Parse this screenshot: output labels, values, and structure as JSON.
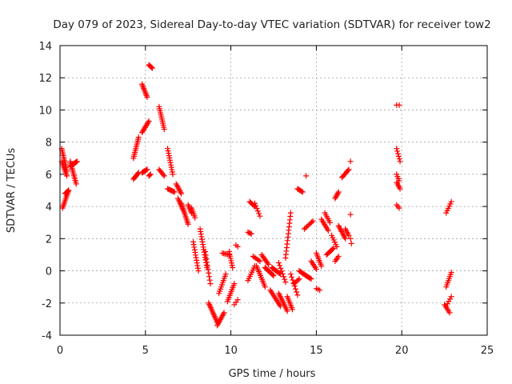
{
  "chart_data": {
    "type": "scatter",
    "title": "Day 079 of 2023, Sidereal Day-to-day VTEC variation (SDTVAR) for receiver tow2",
    "xlabel": "GPS time / hours",
    "ylabel": "SDTVAR / TECUs",
    "xlim": [
      0,
      25
    ],
    "ylim": [
      -4,
      14
    ],
    "xticks": [
      0,
      5,
      10,
      15,
      20,
      25
    ],
    "yticks": [
      -4,
      -2,
      0,
      2,
      4,
      6,
      8,
      10,
      12,
      14
    ],
    "xtick_labels": [
      "0",
      "5",
      "10",
      "15",
      "20",
      "25"
    ],
    "ytick_labels": [
      "-4",
      "-2",
      "0",
      "2",
      "4",
      "6",
      "8",
      "10",
      "12",
      "14"
    ],
    "grid": true,
    "marker": "+",
    "color": "#ff0000",
    "series": [
      {
        "name": "SDTVAR",
        "segments": [
          {
            "x0": 0.1,
            "y0": 7.6,
            "x1": 0.4,
            "y1": 6.2,
            "n": 14
          },
          {
            "x0": 0.1,
            "y0": 6.8,
            "x1": 0.4,
            "y1": 5.9,
            "n": 10
          },
          {
            "x0": 0.15,
            "y0": 3.9,
            "x1": 0.5,
            "y1": 5.0,
            "n": 12
          },
          {
            "x0": 0.3,
            "y0": 4.8,
            "x1": 0.5,
            "y1": 5.0,
            "n": 6
          },
          {
            "x0": 0.6,
            "y0": 6.8,
            "x1": 0.95,
            "y1": 5.4,
            "n": 14
          },
          {
            "x0": 0.6,
            "y0": 6.5,
            "x1": 1.0,
            "y1": 6.8,
            "n": 10
          },
          {
            "x0": 4.3,
            "y0": 5.7,
            "x1": 4.6,
            "y1": 6.1,
            "n": 8
          },
          {
            "x0": 4.3,
            "y0": 7.0,
            "x1": 4.6,
            "y1": 8.3,
            "n": 12
          },
          {
            "x0": 4.8,
            "y0": 11.6,
            "x1": 5.1,
            "y1": 10.8,
            "n": 10
          },
          {
            "x0": 4.8,
            "y0": 8.6,
            "x1": 5.2,
            "y1": 9.3,
            "n": 10
          },
          {
            "x0": 4.8,
            "y0": 6.1,
            "x1": 5.1,
            "y1": 6.3,
            "n": 8
          },
          {
            "x0": 5.2,
            "y0": 12.8,
            "x1": 5.4,
            "y1": 12.6,
            "n": 5
          },
          {
            "x0": 5.2,
            "y0": 5.9,
            "x1": 5.3,
            "y1": 6.0,
            "n": 3
          },
          {
            "x0": 5.8,
            "y0": 10.2,
            "x1": 6.1,
            "y1": 8.8,
            "n": 12
          },
          {
            "x0": 5.8,
            "y0": 6.3,
            "x1": 6.1,
            "y1": 5.9,
            "n": 6
          },
          {
            "x0": 6.3,
            "y0": 7.6,
            "x1": 6.6,
            "y1": 6.0,
            "n": 12
          },
          {
            "x0": 6.3,
            "y0": 5.1,
            "x1": 6.7,
            "y1": 4.9,
            "n": 8
          },
          {
            "x0": 6.8,
            "y0": 5.4,
            "x1": 7.1,
            "y1": 4.8,
            "n": 8
          },
          {
            "x0": 6.9,
            "y0": 4.5,
            "x1": 7.2,
            "y1": 3.8,
            "n": 8
          },
          {
            "x0": 7.1,
            "y0": 4.2,
            "x1": 7.5,
            "y1": 2.9,
            "n": 14
          },
          {
            "x0": 7.5,
            "y0": 4.1,
            "x1": 7.7,
            "y1": 3.6,
            "n": 6
          },
          {
            "x0": 7.7,
            "y0": 3.9,
            "x1": 7.9,
            "y1": 3.3,
            "n": 6
          },
          {
            "x0": 7.8,
            "y0": 1.8,
            "x1": 8.1,
            "y1": 0.0,
            "n": 12
          },
          {
            "x0": 8.2,
            "y0": 2.6,
            "x1": 8.6,
            "y1": 0.2,
            "n": 16
          },
          {
            "x0": 8.5,
            "y0": 1.2,
            "x1": 8.8,
            "y1": -0.8,
            "n": 10
          },
          {
            "x0": 8.7,
            "y0": -2.0,
            "x1": 9.2,
            "y1": -3.2,
            "n": 14
          },
          {
            "x0": 9.2,
            "y0": -3.4,
            "x1": 9.6,
            "y1": -2.6,
            "n": 10
          },
          {
            "x0": 9.3,
            "y0": -1.4,
            "x1": 9.7,
            "y1": -0.2,
            "n": 10
          },
          {
            "x0": 9.5,
            "y0": 1.1,
            "x1": 9.9,
            "y1": 1.0,
            "n": 6
          },
          {
            "x0": 9.8,
            "y0": -1.9,
            "x1": 10.2,
            "y1": -0.8,
            "n": 10
          },
          {
            "x0": 9.9,
            "y0": 1.2,
            "x1": 10.1,
            "y1": 0.2,
            "n": 8
          },
          {
            "x0": 10.3,
            "y0": 1.6,
            "x1": 10.4,
            "y1": 1.5,
            "n": 2
          },
          {
            "x0": 10.2,
            "y0": -2.1,
            "x1": 10.4,
            "y1": -1.8,
            "n": 3
          },
          {
            "x0": 11.0,
            "y0": 2.4,
            "x1": 11.2,
            "y1": 2.3,
            "n": 4
          },
          {
            "x0": 11.1,
            "y0": 4.3,
            "x1": 11.4,
            "y1": 4.0,
            "n": 6
          },
          {
            "x0": 11.4,
            "y0": 4.2,
            "x1": 11.7,
            "y1": 3.4,
            "n": 6
          },
          {
            "x0": 11.0,
            "y0": -0.6,
            "x1": 11.4,
            "y1": 0.3,
            "n": 8
          },
          {
            "x0": 11.3,
            "y0": 0.9,
            "x1": 11.7,
            "y1": 0.6,
            "n": 6
          },
          {
            "x0": 11.5,
            "y0": 0.3,
            "x1": 12.0,
            "y1": -1.0,
            "n": 12
          },
          {
            "x0": 11.8,
            "y0": 1.0,
            "x1": 12.2,
            "y1": 0.4,
            "n": 8
          },
          {
            "x0": 12.0,
            "y0": 0.2,
            "x1": 12.5,
            "y1": -0.3,
            "n": 10
          },
          {
            "x0": 12.4,
            "y0": 0.2,
            "x1": 12.9,
            "y1": -0.2,
            "n": 10
          },
          {
            "x0": 12.3,
            "y0": -1.2,
            "x1": 12.9,
            "y1": -2.2,
            "n": 12
          },
          {
            "x0": 12.8,
            "y0": -1.4,
            "x1": 13.3,
            "y1": -2.5,
            "n": 12
          },
          {
            "x0": 12.8,
            "y0": 0.5,
            "x1": 13.2,
            "y1": -0.7,
            "n": 8
          },
          {
            "x0": 13.3,
            "y0": -1.6,
            "x1": 13.6,
            "y1": -2.4,
            "n": 8
          },
          {
            "x0": 13.2,
            "y0": 0.8,
            "x1": 13.5,
            "y1": 3.6,
            "n": 14
          },
          {
            "x0": 13.5,
            "y0": -0.2,
            "x1": 13.9,
            "y1": -1.5,
            "n": 8
          },
          {
            "x0": 13.7,
            "y0": -0.8,
            "x1": 14.0,
            "y1": -0.5,
            "n": 5
          },
          {
            "x0": 13.9,
            "y0": 5.1,
            "x1": 14.2,
            "y1": 4.9,
            "n": 6
          },
          {
            "x0": 14.0,
            "y0": 0.0,
            "x1": 14.4,
            "y1": -0.3,
            "n": 8
          },
          {
            "x0": 14.4,
            "y0": 5.9,
            "x1": 14.45,
            "y1": 5.85,
            "n": 1
          },
          {
            "x0": 14.3,
            "y0": 2.6,
            "x1": 14.8,
            "y1": 3.1,
            "n": 8
          },
          {
            "x0": 14.4,
            "y0": -0.3,
            "x1": 14.7,
            "y1": -0.5,
            "n": 6
          },
          {
            "x0": 14.7,
            "y0": 0.6,
            "x1": 15.0,
            "y1": 0.1,
            "n": 6
          },
          {
            "x0": 15.0,
            "y0": 1.1,
            "x1": 15.3,
            "y1": 0.3,
            "n": 8
          },
          {
            "x0": 15.0,
            "y0": -1.1,
            "x1": 15.2,
            "y1": -1.2,
            "n": 3
          },
          {
            "x0": 15.3,
            "y0": 3.2,
            "x1": 15.7,
            "y1": 2.5,
            "n": 8
          },
          {
            "x0": 15.5,
            "y0": 3.6,
            "x1": 15.8,
            "y1": 3.0,
            "n": 6
          },
          {
            "x0": 15.6,
            "y0": 1.0,
            "x1": 16.0,
            "y1": 1.4,
            "n": 8
          },
          {
            "x0": 15.9,
            "y0": 2.2,
            "x1": 16.2,
            "y1": 1.5,
            "n": 6
          },
          {
            "x0": 16.1,
            "y0": 4.5,
            "x1": 16.3,
            "y1": 4.9,
            "n": 6
          },
          {
            "x0": 16.1,
            "y0": 0.6,
            "x1": 16.3,
            "y1": 0.9,
            "n": 4
          },
          {
            "x0": 16.3,
            "y0": 2.8,
            "x1": 16.7,
            "y1": 2.0,
            "n": 10
          },
          {
            "x0": 16.5,
            "y0": 5.8,
            "x1": 16.9,
            "y1": 6.3,
            "n": 8
          },
          {
            "x0": 16.7,
            "y0": 2.6,
            "x1": 16.9,
            "y1": 2.2,
            "n": 5
          },
          {
            "x0": 17.0,
            "y0": 6.8,
            "x1": 17.05,
            "y1": 6.8,
            "n": 1
          },
          {
            "x0": 17.0,
            "y0": 3.5,
            "x1": 17.05,
            "y1": 3.5,
            "n": 1
          },
          {
            "x0": 17.0,
            "y0": 2.0,
            "x1": 17.05,
            "y1": 1.7,
            "n": 2
          },
          {
            "x0": 19.7,
            "y0": 10.3,
            "x1": 19.85,
            "y1": 10.3,
            "n": 2
          },
          {
            "x0": 19.7,
            "y0": 7.6,
            "x1": 19.9,
            "y1": 6.8,
            "n": 6
          },
          {
            "x0": 19.7,
            "y0": 6.0,
            "x1": 19.85,
            "y1": 5.6,
            "n": 4
          },
          {
            "x0": 19.7,
            "y0": 5.5,
            "x1": 19.9,
            "y1": 5.1,
            "n": 5
          },
          {
            "x0": 19.7,
            "y0": 4.1,
            "x1": 19.85,
            "y1": 3.9,
            "n": 3
          },
          {
            "x0": 22.5,
            "y0": -2.1,
            "x1": 22.8,
            "y1": -2.6,
            "n": 6
          },
          {
            "x0": 22.6,
            "y0": -1.0,
            "x1": 22.9,
            "y1": -0.1,
            "n": 8
          },
          {
            "x0": 22.6,
            "y0": -2.2,
            "x1": 22.9,
            "y1": -1.6,
            "n": 5
          },
          {
            "x0": 22.6,
            "y0": 3.6,
            "x1": 22.9,
            "y1": 4.3,
            "n": 6
          }
        ]
      }
    ]
  }
}
